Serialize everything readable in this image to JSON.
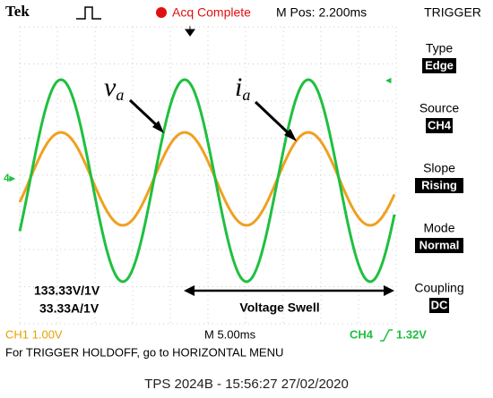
{
  "header": {
    "brand": "Tek",
    "status": "Acq Complete",
    "position": "M Pos: 2.200ms",
    "menu_title": "TRIGGER"
  },
  "menu": [
    {
      "label": "Type",
      "value": "Edge"
    },
    {
      "label": "Source",
      "value": "CH4"
    },
    {
      "label": "Slope",
      "value": "Rising"
    },
    {
      "label": "Mode",
      "value": "Normal"
    },
    {
      "label": "Coupling",
      "value": "DC"
    }
  ],
  "annotations": {
    "voltage": {
      "symbol": "v",
      "subscript": "a"
    },
    "current": {
      "symbol": "i",
      "subscript": "a"
    },
    "scale_voltage": "133.33V/1V",
    "scale_current": "33.33A/1V",
    "event": "Voltage Swell"
  },
  "status_bar": {
    "ch1": "CH1  1.00V",
    "timebase": "M 5.00ms",
    "ch4_name": "CH4",
    "ch4_level": "1.32V"
  },
  "message": "For TRIGGER HOLDOFF, go to HORIZONTAL MENU",
  "caption": "TPS 2024B - 15:56:27   27/02/2020"
}
